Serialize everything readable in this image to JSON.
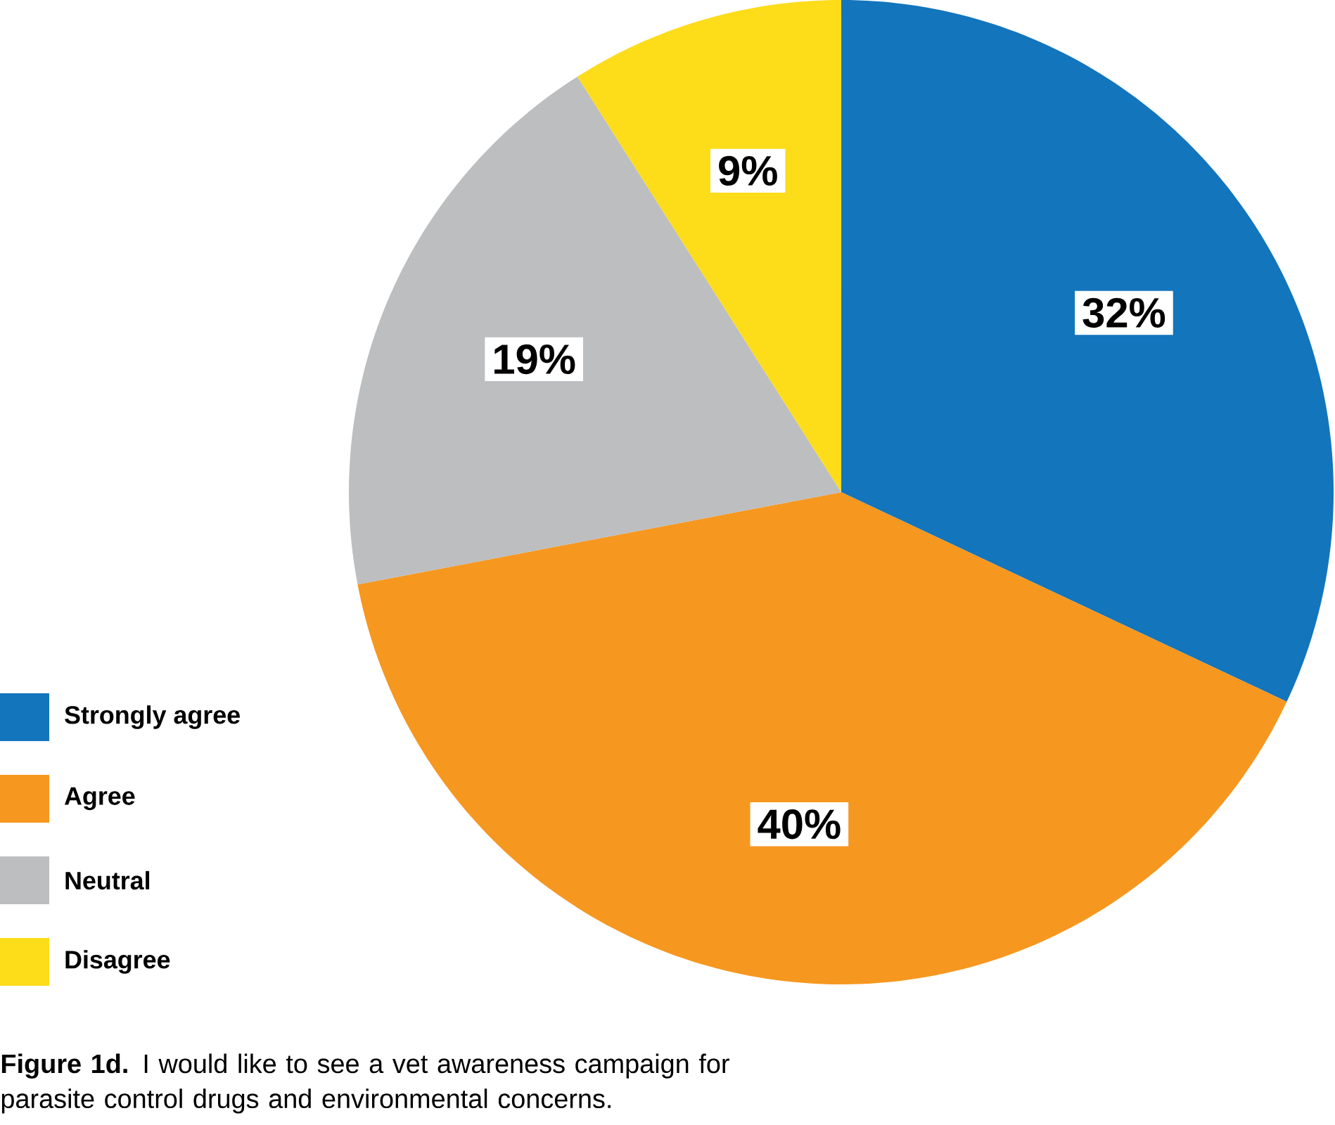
{
  "chart_data": {
    "type": "pie",
    "categories": [
      "Strongly agree",
      "Agree",
      "Neutral",
      "Disagree"
    ],
    "values": [
      32,
      40,
      19,
      9
    ],
    "value_labels": [
      "32%",
      "40%",
      "19%",
      "9%"
    ],
    "colors": [
      "#1375bc",
      "#f6971f",
      "#bcbec0",
      "#fddc1a"
    ],
    "legend": "bottom left",
    "annotations": [
      "**Figure 1d.** I would like to see a vet awareness campaign for parasite control drugs and environmental concerns."
    ]
  }
}
